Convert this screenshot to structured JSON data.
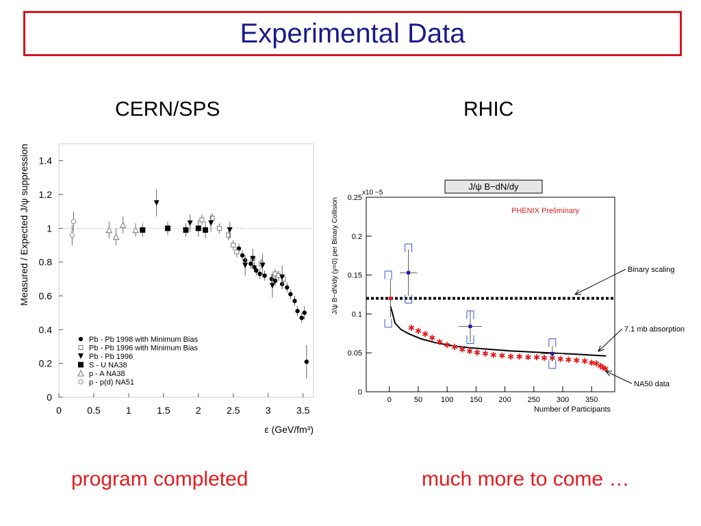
{
  "title": "Experimental Data",
  "left_section_title": "CERN/SPS",
  "right_section_title": "RHIC",
  "left_caption": "program completed",
  "right_caption": "much more to come …",
  "chart_data": [
    {
      "type": "scatter",
      "ylabel": "Measured / Expected  J/ψ suppression",
      "xlabel": "ε  (GeV/fm³)",
      "xlim": [
        0,
        3.65
      ],
      "ylim": [
        0,
        1.5
      ],
      "xticks": [
        {
          "v": 0,
          "label": "0"
        },
        {
          "v": 0.5,
          "label": "0.5"
        },
        {
          "v": 1,
          "label": "1"
        },
        {
          "v": 1.5,
          "label": "1.5"
        },
        {
          "v": 2,
          "label": "2"
        },
        {
          "v": 2.5,
          "label": "2.5"
        },
        {
          "v": 3,
          "label": "3"
        },
        {
          "v": 3.5,
          "label": "3.5"
        }
      ],
      "yticks": [
        {
          "v": 0,
          "label": "0"
        },
        {
          "v": 0.2,
          "label": "0.2"
        },
        {
          "v": 0.4,
          "label": "0.4"
        },
        {
          "v": 0.6,
          "label": "0.6"
        },
        {
          "v": 0.8,
          "label": "0.8"
        },
        {
          "v": 1,
          "label": "1"
        },
        {
          "v": 1.2,
          "label": "1.2"
        },
        {
          "v": 1.4,
          "label": "1.4"
        }
      ],
      "reference_line": 1,
      "legend_position": "bottom-left",
      "series": [
        {
          "name": "Pb - Pb 1998 with Minimum Bias",
          "marker": "filled-circle",
          "points": [
            [
              2.58,
              0.88,
              0.03
            ],
            [
              2.63,
              0.84,
              0.03
            ],
            [
              2.67,
              0.81,
              0.03
            ],
            [
              2.75,
              0.79,
              0.03
            ],
            [
              2.8,
              0.77,
              0.03
            ],
            [
              2.83,
              0.75,
              0.03
            ],
            [
              2.88,
              0.73,
              0.03
            ],
            [
              2.95,
              0.72,
              0.03
            ],
            [
              3.05,
              0.7,
              0.03
            ],
            [
              3.1,
              0.69,
              0.03
            ],
            [
              3.2,
              0.67,
              0.03
            ],
            [
              3.27,
              0.65,
              0.03
            ],
            [
              3.32,
              0.61,
              0.03
            ],
            [
              3.38,
              0.57,
              0.03
            ],
            [
              3.42,
              0.51,
              0.03
            ],
            [
              3.48,
              0.47,
              0.03
            ],
            [
              3.52,
              0.5,
              0.04
            ],
            [
              3.55,
              0.21,
              0.1
            ]
          ]
        },
        {
          "name": "Pb - Pb 1996 with Minimum Bias",
          "marker": "open-square",
          "points": [
            [
              2.05,
              1.05,
              0.03
            ],
            [
              2.2,
              1.06,
              0.03
            ],
            [
              2.3,
              1.0,
              0.03
            ],
            [
              2.43,
              0.96,
              0.03
            ],
            [
              2.5,
              0.9,
              0.03
            ],
            [
              2.55,
              0.86,
              0.03
            ],
            [
              2.78,
              0.82,
              0.03
            ],
            [
              2.9,
              0.79,
              0.03
            ],
            [
              3.1,
              0.73,
              0.03
            ],
            [
              3.15,
              0.72,
              0.03
            ],
            [
              3.22,
              0.7,
              0.03
            ]
          ]
        },
        {
          "name": "Pb - Pb 1996",
          "marker": "filled-triangle-down",
          "points": [
            [
              1.4,
              1.15,
              0.08
            ],
            [
              1.88,
              1.03,
              0.05
            ],
            [
              2.18,
              1.03,
              0.05
            ],
            [
              2.45,
              0.99,
              0.05
            ],
            [
              2.67,
              0.78,
              0.06
            ],
            [
              2.78,
              0.82,
              0.06
            ],
            [
              2.92,
              0.78,
              0.07
            ],
            [
              3.06,
              0.66,
              0.07
            ],
            [
              3.2,
              0.71,
              0.07
            ]
          ]
        },
        {
          "name": "S - U     NA38",
          "marker": "filled-square",
          "points": [
            [
              1.2,
              0.99,
              0.04
            ],
            [
              1.56,
              1.0,
              0.04
            ],
            [
              1.82,
              0.99,
              0.04
            ],
            [
              2.0,
              1.0,
              0.05
            ],
            [
              2.1,
              0.99,
              0.05
            ]
          ]
        },
        {
          "name": "p - A     NA38",
          "marker": "open-triangle",
          "points": [
            [
              0.72,
              0.99,
              0.05
            ],
            [
              0.82,
              0.95,
              0.05
            ],
            [
              0.92,
              1.02,
              0.05
            ],
            [
              1.1,
              0.99,
              0.04
            ]
          ]
        },
        {
          "name": "p - p(d)  NA51",
          "marker": "open-circle",
          "points": [
            [
              0.19,
              0.96,
              0.06
            ],
            [
              0.21,
              1.04,
              0.06
            ]
          ]
        }
      ]
    },
    {
      "type": "scatter",
      "title": "J/ψ B−dN/dy",
      "annotation": "PHENIX Preliminary",
      "ylabel": "J/ψ  B−dN/dy (y=0) per Binary Collision",
      "xlabel": "Number of Participants",
      "y_multiplier": "x10 −5",
      "xlim": [
        -40,
        390
      ],
      "ylim": [
        0,
        0.25
      ],
      "xticks": [
        {
          "v": 0,
          "label": "0"
        },
        {
          "v": 50,
          "label": "50"
        },
        {
          "v": 100,
          "label": "100"
        },
        {
          "v": 150,
          "label": "150"
        },
        {
          "v": 200,
          "label": "200"
        },
        {
          "v": 250,
          "label": "250"
        },
        {
          "v": 300,
          "label": "300"
        },
        {
          "v": 350,
          "label": "350"
        }
      ],
      "yticks": [
        {
          "v": 0,
          "label": "0"
        },
        {
          "v": 0.05,
          "label": "0.05"
        },
        {
          "v": 0.1,
          "label": "0.1"
        },
        {
          "v": 0.15,
          "label": "0.15"
        },
        {
          "v": 0.2,
          "label": "0.2"
        },
        {
          "v": 0.25,
          "label": "0.25"
        }
      ],
      "binary_scaling_level": 0.12,
      "phenix_points": [
        [
          2,
          0.12,
          0.03,
          0,
          0.025
        ],
        [
          33,
          0.153,
          0.082,
          15,
          0.03
        ],
        [
          140,
          0.084,
          0.03,
          20,
          0.02
        ],
        [
          282,
          0.049,
          0.01,
          20,
          0.01
        ]
      ],
      "phenix_sys_boxes": [
        [
          -2,
          0.155,
          0.083
        ],
        [
          33,
          0.19,
          0.114
        ],
        [
          140,
          0.104,
          0.062
        ],
        [
          282,
          0.068,
          0.03
        ]
      ],
      "absorption_curve": [
        [
          2,
          0.11
        ],
        [
          10,
          0.088
        ],
        [
          20,
          0.08
        ],
        [
          35,
          0.074
        ],
        [
          55,
          0.068
        ],
        [
          80,
          0.063
        ],
        [
          110,
          0.059
        ],
        [
          140,
          0.0565
        ],
        [
          175,
          0.0545
        ],
        [
          210,
          0.0525
        ],
        [
          250,
          0.051
        ],
        [
          290,
          0.0495
        ],
        [
          330,
          0.048
        ],
        [
          375,
          0.046
        ]
      ],
      "na50_data": [
        [
          38,
          0.082
        ],
        [
          50,
          0.078
        ],
        [
          62,
          0.074
        ],
        [
          74,
          0.069
        ],
        [
          87,
          0.064
        ],
        [
          100,
          0.06
        ],
        [
          113,
          0.057
        ],
        [
          126,
          0.054
        ],
        [
          139,
          0.052
        ],
        [
          152,
          0.05
        ],
        [
          166,
          0.049
        ],
        [
          180,
          0.047
        ],
        [
          195,
          0.046
        ],
        [
          210,
          0.045
        ],
        [
          225,
          0.045
        ],
        [
          240,
          0.044
        ],
        [
          255,
          0.044
        ],
        [
          268,
          0.043
        ],
        [
          282,
          0.043
        ],
        [
          296,
          0.042
        ],
        [
          310,
          0.041
        ],
        [
          324,
          0.04
        ],
        [
          338,
          0.039
        ],
        [
          350,
          0.037
        ],
        [
          358,
          0.036
        ],
        [
          365,
          0.033
        ],
        [
          370,
          0.031
        ],
        [
          374,
          0.029
        ]
      ],
      "labels": [
        "Binary scaling",
        "7.1 mb absorption",
        "NA50 data"
      ]
    }
  ]
}
